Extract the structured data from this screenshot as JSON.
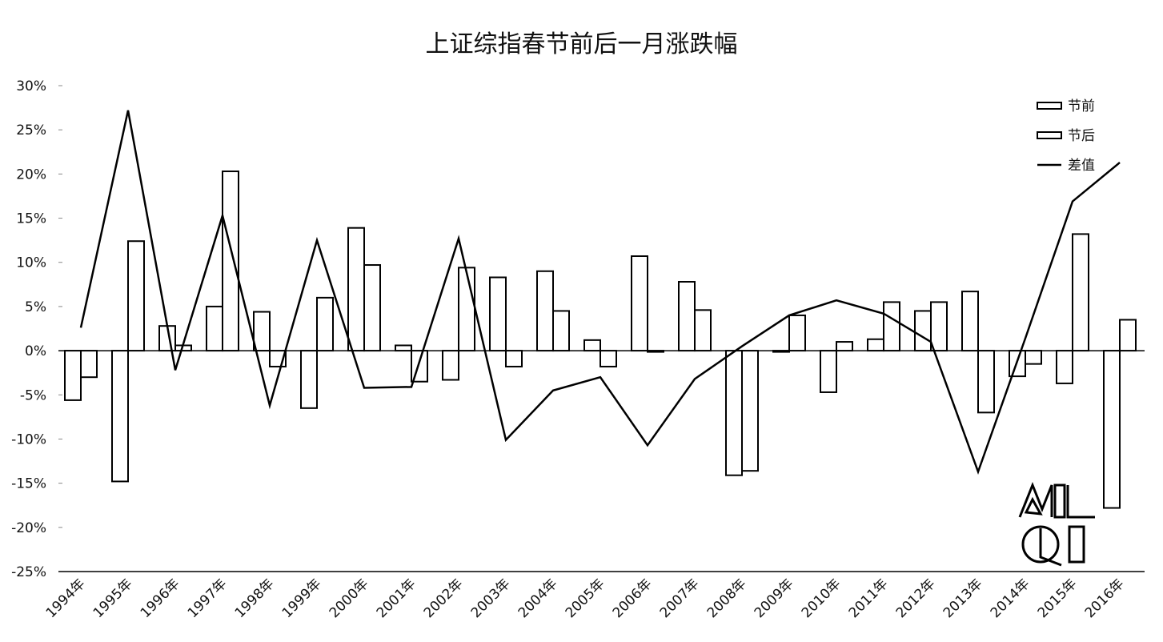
{
  "chart_data": {
    "type": "bar",
    "title": "上证综指春节前后一月涨跌幅",
    "xlabel": "",
    "ylabel": "",
    "categories": [
      "1994年",
      "1995年",
      "1996年",
      "1997年",
      "1998年",
      "1999年",
      "2000年",
      "2001年",
      "2002年",
      "2003年",
      "2004年",
      "2005年",
      "2006年",
      "2007年",
      "2008年",
      "2009年",
      "2010年",
      "2011年",
      "2012年",
      "2013年",
      "2014年",
      "2015年",
      "2016年"
    ],
    "series": [
      {
        "name": "节前",
        "type": "bar",
        "values": [
          -5.6,
          -14.8,
          2.8,
          5.0,
          4.4,
          -6.5,
          13.9,
          0.6,
          -3.3,
          8.3,
          9.0,
          1.2,
          10.7,
          7.8,
          -14.1,
          0.0,
          -4.7,
          1.3,
          4.5,
          6.7,
          -2.9,
          -3.7,
          -17.8
        ]
      },
      {
        "name": "节后",
        "type": "bar",
        "values": [
          -3.0,
          12.4,
          0.6,
          20.3,
          -1.8,
          6.0,
          9.7,
          -3.5,
          9.4,
          -1.8,
          4.5,
          -1.8,
          0.0,
          4.6,
          -13.6,
          4.0,
          1.0,
          5.5,
          5.5,
          -7.0,
          -1.5,
          13.2,
          3.5
        ]
      },
      {
        "name": "差值",
        "type": "line",
        "values": [
          2.6,
          27.2,
          -2.2,
          15.3,
          -6.2,
          12.5,
          -4.2,
          -4.1,
          12.7,
          -10.1,
          -4.5,
          -3.0,
          -10.7,
          -3.2,
          0.5,
          4.0,
          5.7,
          4.2,
          1.0,
          -13.7,
          1.4,
          16.9,
          21.3
        ]
      }
    ],
    "ylim": [
      -25,
      30
    ],
    "yticks": [
      30,
      25,
      20,
      15,
      10,
      5,
      0,
      -5,
      -10,
      -15,
      -20,
      -25
    ],
    "ytick_labels": [
      "30%",
      "25%",
      "20%",
      "15%",
      "10%",
      "5%",
      "0%",
      "-5%",
      "-10%",
      "-15%",
      "-20%",
      "-25%"
    ],
    "legend_position": "top-right",
    "grid": false
  },
  "colors": {
    "bar_fill": "#ffffff",
    "bar_stroke": "#000000",
    "line": "#000000",
    "axis": "#000000"
  },
  "watermark": {
    "text": "MIL QI"
  }
}
